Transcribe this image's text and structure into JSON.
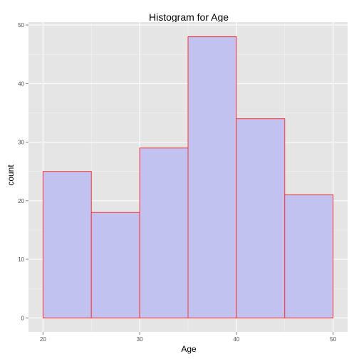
{
  "chart_data": {
    "type": "bar",
    "title": "Histogram for Age",
    "xlabel": "Age",
    "ylabel": "count",
    "bins": [
      {
        "start": 20,
        "end": 25,
        "count": 25
      },
      {
        "start": 25,
        "end": 30,
        "count": 18
      },
      {
        "start": 30,
        "end": 35,
        "count": 29
      },
      {
        "start": 35,
        "end": 40,
        "count": 48
      },
      {
        "start": 40,
        "end": 45,
        "count": 34
      },
      {
        "start": 45,
        "end": 50,
        "count": 21
      }
    ],
    "x_ticks": [
      20,
      30,
      40,
      50
    ],
    "y_ticks": [
      0,
      10,
      20,
      30,
      40,
      50
    ],
    "xlim": [
      18.5,
      51.5
    ],
    "ylim": [
      -2.4,
      50.5
    ],
    "grid": true,
    "bar_fill": "#c2c2f0",
    "bar_outline": "#ff3333",
    "panel_background": "#e5e5e5",
    "grid_color": "#ffffff"
  }
}
